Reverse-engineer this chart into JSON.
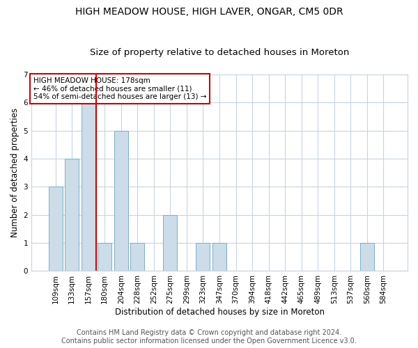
{
  "title": "HIGH MEADOW HOUSE, HIGH LAVER, ONGAR, CM5 0DR",
  "subtitle": "Size of property relative to detached houses in Moreton",
  "xlabel": "Distribution of detached houses by size in Moreton",
  "ylabel": "Number of detached properties",
  "categories": [
    "109sqm",
    "133sqm",
    "157sqm",
    "180sqm",
    "204sqm",
    "228sqm",
    "252sqm",
    "275sqm",
    "299sqm",
    "323sqm",
    "347sqm",
    "370sqm",
    "394sqm",
    "418sqm",
    "442sqm",
    "465sqm",
    "489sqm",
    "513sqm",
    "537sqm",
    "560sqm",
    "584sqm"
  ],
  "values": [
    3,
    4,
    6,
    1,
    5,
    1,
    0,
    2,
    0,
    1,
    1,
    0,
    0,
    0,
    0,
    0,
    0,
    0,
    0,
    1,
    0
  ],
  "bar_color": "#ccdce8",
  "bar_edge_color": "#7aafc8",
  "marker_color": "#cc0000",
  "annotation_text": "HIGH MEADOW HOUSE: 178sqm\n← 46% of detached houses are smaller (11)\n54% of semi-detached houses are larger (13) →",
  "annotation_box_color": "#cc0000",
  "ylim": [
    0,
    7
  ],
  "yticks": [
    0,
    1,
    2,
    3,
    4,
    5,
    6,
    7
  ],
  "footer1": "Contains HM Land Registry data © Crown copyright and database right 2024.",
  "footer2": "Contains public sector information licensed under the Open Government Licence v3.0.",
  "background_color": "#ffffff",
  "grid_color": "#c8d4e0",
  "title_fontsize": 10,
  "subtitle_fontsize": 9.5,
  "axis_label_fontsize": 8.5,
  "tick_fontsize": 7.5,
  "footer_fontsize": 7,
  "annotation_fontsize": 7.5
}
